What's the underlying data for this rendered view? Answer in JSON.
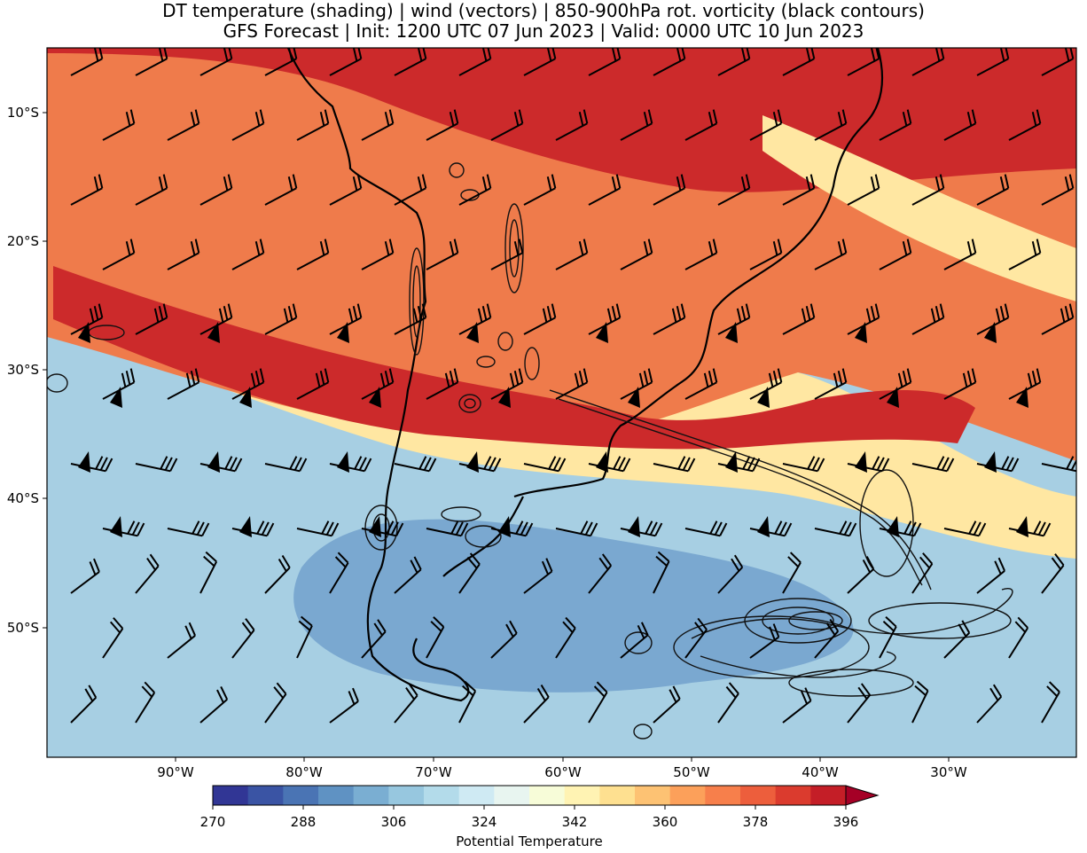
{
  "title_line1": "DT temperature (shading) | wind (vectors) | 850-900hPa rot. vorticity (black contours)",
  "title_line2": "GFS Forecast | Init: 1200 UTC 07 Jun 2023 | Valid: 0000 UTC 10 Jun 2023",
  "map": {
    "lon_labels": [
      "90°W",
      "80°W",
      "70°W",
      "60°W",
      "50°W",
      "40°W",
      "30°W"
    ],
    "lat_labels": [
      "10°S",
      "20°S",
      "30°S",
      "40°S",
      "50°S"
    ]
  },
  "colorbar": {
    "label": "Potential Temperature",
    "tick_labels": [
      "270",
      "288",
      "306",
      "324",
      "342",
      "360",
      "378",
      "396"
    ],
    "colors": [
      "#313695",
      "#3a54a4",
      "#4a74b4",
      "#5f92c3",
      "#7aaed2",
      "#97c7df",
      "#b3dbea",
      "#cfeaf3",
      "#e8f5f0",
      "#f7fcd8",
      "#fff3b3",
      "#fee090",
      "#fdc273",
      "#fca05a",
      "#f77f4b",
      "#ed5e3c",
      "#db3b2e",
      "#c41e27",
      "#a50026"
    ]
  },
  "field_colors": {
    "cold": "#a7cfe3",
    "cold_dark": "#7aa8d0",
    "warm": "#ef7b4b",
    "hot": "#cc2a2b",
    "band": "#ffe7a2"
  }
}
